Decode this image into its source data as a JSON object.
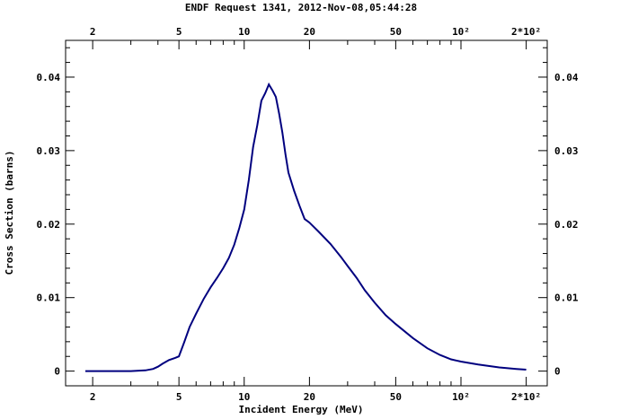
{
  "chart_data": {
    "type": "line",
    "title": "ENDF Request 1341, 2012-Nov-08,05:44:28",
    "xlabel": "Incident Energy (MeV)",
    "ylabel": "Cross Section (barns)",
    "x_scale": "log",
    "xlim": [
      1.5,
      250
    ],
    "ylim": [
      -0.002,
      0.045
    ],
    "x_major_ticks": [
      {
        "value": 2,
        "label": "2"
      },
      {
        "value": 5,
        "label": "5"
      },
      {
        "value": 10,
        "label": "10"
      },
      {
        "value": 20,
        "label": "20"
      },
      {
        "value": 50,
        "label": "50"
      },
      {
        "value": 100,
        "label": "10²"
      },
      {
        "value": 200,
        "label": "2*10²"
      }
    ],
    "y_major_ticks": [
      {
        "value": 0,
        "label": "0"
      },
      {
        "value": 0.01,
        "label": "0.01"
      },
      {
        "value": 0.02,
        "label": "0.02"
      },
      {
        "value": 0.03,
        "label": "0.03"
      },
      {
        "value": 0.04,
        "label": "0.04"
      }
    ],
    "grid": false,
    "line_color": "#00007f",
    "series": [
      {
        "x": [
          1.85,
          2.5,
          3.0,
          3.5,
          3.8,
          4.0,
          4.2,
          4.5,
          4.8,
          5.0,
          5.3,
          5.6,
          6.0,
          6.5,
          7.0,
          7.5,
          8.0,
          8.5,
          9.0,
          9.5,
          10.0,
          10.5,
          11.0,
          11.5,
          12.0,
          12.5,
          13.0,
          13.5,
          14.0,
          14.5,
          15.0,
          15.5,
          16.0,
          17.0,
          18.0,
          19.0,
          20.0,
          22.0,
          25.0,
          28.0,
          30.0,
          33.0,
          36.0,
          40.0,
          45.0,
          50.0,
          60.0,
          70.0,
          80.0,
          90.0,
          100.0,
          120.0,
          150.0,
          180.0,
          200.0
        ],
        "y": [
          0.0,
          0.0,
          0.0,
          0.0001,
          0.0003,
          0.0006,
          0.001,
          0.0015,
          0.0018,
          0.002,
          0.004,
          0.006,
          0.0078,
          0.0098,
          0.0114,
          0.0127,
          0.014,
          0.0154,
          0.0172,
          0.0195,
          0.022,
          0.026,
          0.0305,
          0.0335,
          0.0368,
          0.0378,
          0.039,
          0.0382,
          0.0373,
          0.035,
          0.0325,
          0.0295,
          0.027,
          0.0245,
          0.0225,
          0.0207,
          0.0202,
          0.019,
          0.0173,
          0.0155,
          0.0143,
          0.0127,
          0.011,
          0.0093,
          0.0076,
          0.0064,
          0.0045,
          0.0031,
          0.0022,
          0.0016,
          0.0013,
          0.0009,
          0.0005,
          0.0003,
          0.0002
        ]
      }
    ]
  }
}
